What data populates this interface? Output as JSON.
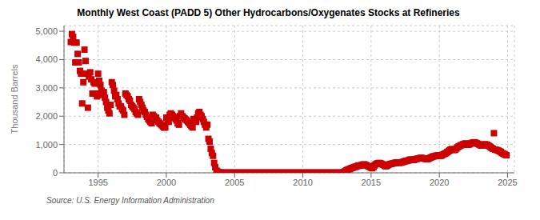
{
  "chart_data": {
    "type": "scatter",
    "title": "Monthly West Coast (PADD 5) Other Hydrocarbons/Oxygenates Stocks at Refineries",
    "ylabel": "Thousand Barrels",
    "annotations": [
      "Source: U.S. Energy Information Administration"
    ],
    "color": "#cc0000",
    "marker": "square",
    "grid": true,
    "xlim": [
      1992.5,
      2025.5
    ],
    "xticks": [
      1995,
      2000,
      2005,
      2010,
      2015,
      2020,
      2025
    ],
    "ylim": [
      0,
      5200
    ],
    "yticks": [
      0,
      {
        "value": 1000,
        "label": "1,000"
      },
      {
        "value": 2000,
        "label": "2,000"
      },
      {
        "value": 3000,
        "label": "3,000"
      },
      {
        "value": 4000,
        "label": "4,000"
      },
      {
        "value": 5000,
        "label": "5,000"
      }
    ],
    "x": [
      1993.0,
      1993.08,
      1993.17,
      1993.25,
      1993.33,
      1993.42,
      1993.5,
      1993.58,
      1993.67,
      1993.75,
      1993.83,
      1993.92,
      1994.0,
      1994.08,
      1994.17,
      1994.25,
      1994.33,
      1994.42,
      1994.5,
      1994.58,
      1994.67,
      1994.75,
      1994.83,
      1994.92,
      1995.0,
      1995.08,
      1995.17,
      1995.25,
      1995.33,
      1995.42,
      1995.5,
      1995.58,
      1995.67,
      1995.75,
      1995.83,
      1995.92,
      1996.0,
      1996.08,
      1996.17,
      1996.25,
      1996.33,
      1996.42,
      1996.5,
      1996.58,
      1996.67,
      1996.75,
      1996.83,
      1996.92,
      1997.0,
      1997.08,
      1997.17,
      1997.25,
      1997.33,
      1997.42,
      1997.5,
      1997.58,
      1997.67,
      1997.75,
      1997.83,
      1997.92,
      1998.0,
      1998.08,
      1998.17,
      1998.25,
      1998.33,
      1998.42,
      1998.5,
      1998.58,
      1998.67,
      1998.75,
      1998.83,
      1998.92,
      1999.0,
      1999.08,
      1999.17,
      1999.25,
      1999.33,
      1999.42,
      1999.5,
      1999.58,
      1999.67,
      1999.75,
      1999.83,
      1999.92,
      2000.0,
      2000.08,
      2000.17,
      2000.25,
      2000.33,
      2000.42,
      2000.5,
      2000.58,
      2000.67,
      2000.75,
      2000.83,
      2000.92,
      2001.0,
      2001.08,
      2001.17,
      2001.25,
      2001.33,
      2001.42,
      2001.5,
      2001.58,
      2001.67,
      2001.75,
      2001.83,
      2001.92,
      2002.0,
      2002.08,
      2002.17,
      2002.25,
      2002.33,
      2002.42,
      2002.5,
      2002.58,
      2002.67,
      2002.75,
      2002.83,
      2002.92,
      2003.0,
      2003.08,
      2003.17,
      2003.25,
      2003.33,
      2003.42,
      2003.5,
      2003.58,
      2003.67,
      2003.75,
      2003.83,
      2003.92,
      2004.0,
      2004.08,
      2004.17,
      2004.25,
      2004.33,
      2004.42,
      2004.5,
      2004.58,
      2004.67,
      2004.75,
      2004.83,
      2004.92,
      2005.0,
      2005.08,
      2005.17,
      2005.25,
      2005.33,
      2005.42,
      2005.5,
      2005.58,
      2005.67,
      2005.75,
      2005.83,
      2005.92,
      2006.0,
      2006.08,
      2006.17,
      2006.25,
      2006.33,
      2006.42,
      2006.5,
      2006.58,
      2006.67,
      2006.75,
      2006.83,
      2006.92,
      2007.0,
      2007.08,
      2007.17,
      2007.25,
      2007.33,
      2007.42,
      2007.5,
      2007.58,
      2007.67,
      2007.75,
      2007.83,
      2007.92,
      2008.0,
      2008.08,
      2008.17,
      2008.25,
      2008.33,
      2008.42,
      2008.5,
      2008.58,
      2008.67,
      2008.75,
      2008.83,
      2008.92,
      2009.0,
      2009.08,
      2009.17,
      2009.25,
      2009.33,
      2009.42,
      2009.5,
      2009.58,
      2009.67,
      2009.75,
      2009.83,
      2009.92,
      2010.0,
      2010.08,
      2010.17,
      2010.25,
      2010.33,
      2010.42,
      2010.5,
      2010.58,
      2010.67,
      2010.75,
      2010.83,
      2010.92,
      2011.0,
      2011.08,
      2011.17,
      2011.25,
      2011.33,
      2011.42,
      2011.5,
      2011.58,
      2011.67,
      2011.75,
      2011.83,
      2011.92,
      2012.0,
      2012.08,
      2012.17,
      2012.25,
      2012.33,
      2012.42,
      2012.5,
      2012.58,
      2012.67,
      2012.75,
      2012.83,
      2012.92,
      2013.0,
      2013.08,
      2013.17,
      2013.25,
      2013.33,
      2013.42,
      2013.5,
      2013.58,
      2013.67,
      2013.75,
      2013.83,
      2013.92,
      2014.0,
      2014.08,
      2014.17,
      2014.25,
      2014.33,
      2014.42,
      2014.5,
      2014.58,
      2014.67,
      2014.75,
      2014.83,
      2014.92,
      2015.0,
      2015.08,
      2015.17,
      2015.25,
      2015.33,
      2015.42,
      2015.5,
      2015.58,
      2015.67,
      2015.75,
      2015.83,
      2015.92,
      2016.0,
      2016.08,
      2016.17,
      2016.25,
      2016.33,
      2016.42,
      2016.5,
      2016.58,
      2016.67,
      2016.75,
      2016.83,
      2016.92,
      2017.0,
      2017.08,
      2017.17,
      2017.25,
      2017.33,
      2017.42,
      2017.5,
      2017.58,
      2017.67,
      2017.75,
      2017.83,
      2017.92,
      2018.0,
      2018.08,
      2018.17,
      2018.25,
      2018.33,
      2018.42,
      2018.5,
      2018.58,
      2018.67,
      2018.75,
      2018.83,
      2018.92,
      2019.0,
      2019.08,
      2019.17,
      2019.25,
      2019.33,
      2019.42,
      2019.5,
      2019.58,
      2019.67,
      2019.75,
      2019.83,
      2019.92,
      2020.0,
      2020.08,
      2020.17,
      2020.25,
      2020.33,
      2020.42,
      2020.5,
      2020.58,
      2020.67,
      2020.75,
      2020.83,
      2020.92,
      2021.0,
      2021.08,
      2021.17,
      2021.25,
      2021.33,
      2021.42,
      2021.5,
      2021.58,
      2021.67,
      2021.75,
      2021.83,
      2021.92,
      2022.0,
      2022.08,
      2022.17,
      2022.25,
      2022.33,
      2022.42,
      2022.5,
      2022.58,
      2022.67,
      2022.75,
      2022.83,
      2022.92,
      2023.0,
      2023.08,
      2023.17,
      2023.25,
      2023.33,
      2023.42,
      2023.5,
      2023.58,
      2023.67,
      2023.75,
      2023.83,
      2023.92,
      2024.0,
      2024.08,
      2024.17,
      2024.25,
      2024.33,
      2024.42,
      2024.5,
      2024.58,
      2024.67,
      2024.75,
      2024.83,
      2024.92
    ],
    "values": [
      4620,
      4900,
      4800,
      4600,
      3900,
      4600,
      4200,
      3900,
      3600,
      3500,
      2450,
      3200,
      4350,
      3950,
      3500,
      2300,
      3400,
      3550,
      3300,
      2800,
      3200,
      3150,
      2800,
      2700,
      3500,
      3250,
      3100,
      2900,
      2750,
      2850,
      2650,
      2500,
      2300,
      2200,
      2100,
      2400,
      3200,
      3100,
      2900,
      2700,
      2750,
      2600,
      2450,
      2350,
      2350,
      2250,
      2200,
      2050,
      2800,
      2750,
      2700,
      2600,
      2550,
      2400,
      2350,
      2300,
      2250,
      2150,
      2100,
      2050,
      2600,
      2500,
      2400,
      2300,
      2200,
      2150,
      2050,
      1980,
      1900,
      1850,
      1800,
      1750,
      2050,
      2000,
      1950,
      1950,
      1850,
      1800,
      1750,
      1720,
      1680,
      1640,
      1600,
      1600,
      1950,
      1850,
      1800,
      2050,
      2100,
      2050,
      2000,
      1950,
      1900,
      1850,
      1750,
      1700,
      2000,
      2100,
      2000,
      1950,
      1920,
      1880,
      1850,
      1800,
      1750,
      1700,
      1650,
      1600,
      1900,
      1850,
      1800,
      1950,
      2100,
      2150,
      2050,
      2000,
      1900,
      1800,
      1700,
      1600,
      1700,
      1200,
      1100,
      850,
      700,
      600,
      350,
      200,
      80,
      40,
      20,
      10,
      8,
      6,
      5,
      5,
      5,
      5,
      5,
      5,
      5,
      5,
      5,
      5,
      5,
      5,
      5,
      5,
      5,
      5,
      5,
      5,
      5,
      5,
      5,
      5,
      5,
      5,
      5,
      5,
      5,
      5,
      5,
      5,
      5,
      5,
      5,
      5,
      5,
      5,
      5,
      5,
      5,
      5,
      5,
      5,
      5,
      5,
      5,
      5,
      5,
      5,
      5,
      5,
      5,
      5,
      5,
      5,
      5,
      5,
      5,
      5,
      5,
      5,
      5,
      5,
      5,
      5,
      5,
      5,
      5,
      5,
      5,
      5,
      5,
      5,
      5,
      5,
      5,
      5,
      5,
      5,
      5,
      5,
      5,
      5,
      5,
      5,
      5,
      5,
      5,
      5,
      5,
      5,
      5,
      5,
      5,
      5,
      5,
      5,
      5,
      5,
      5,
      5,
      5,
      5,
      5,
      5,
      5,
      5,
      30,
      50,
      80,
      100,
      120,
      130,
      150,
      170,
      180,
      200,
      210,
      220,
      240,
      260,
      250,
      260,
      280,
      290,
      300,
      280,
      260,
      240,
      230,
      200,
      180,
      160,
      200,
      260,
      300,
      320,
      340,
      350,
      340,
      320,
      300,
      280,
      250,
      230,
      250,
      280,
      300,
      310,
      320,
      330,
      340,
      350,
      360,
      370,
      360,
      350,
      360,
      370,
      380,
      400,
      410,
      420,
      430,
      440,
      460,
      470,
      460,
      450,
      460,
      480,
      490,
      500,
      510,
      520,
      530,
      520,
      510,
      500,
      490,
      480,
      490,
      510,
      530,
      550,
      570,
      580,
      590,
      600,
      610,
      620,
      610,
      600,
      610,
      640,
      660,
      680,
      700,
      730,
      760,
      790,
      820,
      840,
      820,
      800,
      820,
      860,
      900,
      930,
      950,
      970,
      990,
      1010,
      1020,
      1040,
      1010,
      990,
      1000,
      1020,
      1040,
      1060,
      1070,
      1080,
      1060,
      1040,
      1020,
      1000,
      980,
      960,
      970,
      990,
      1010,
      1000,
      990,
      960,
      940,
      910,
      880,
      850,
      1400,
      820,
      810,
      800,
      780,
      760,
      740,
      700,
      680,
      660,
      640,
      620
    ]
  }
}
